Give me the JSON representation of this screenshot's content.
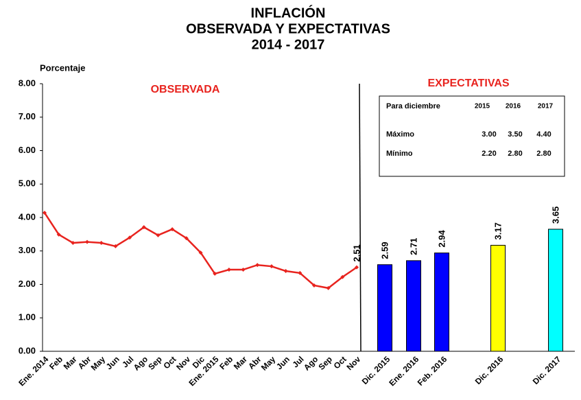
{
  "chart_data": [
    {
      "type": "line",
      "title": [
        "INFLACIÓN",
        "OBSERVADA Y EXPECTATIVAS",
        "2014 - 2017"
      ],
      "y_label": "Porcentaje",
      "annotation": "OBSERVADA",
      "categories": [
        "Ene. 2014",
        "Feb",
        "Mar",
        "Abr",
        "May",
        "Jun",
        "Jul",
        "Ago",
        "Sep",
        "Oct",
        "Nov",
        "Dic",
        "Ene. 2015",
        "Feb",
        "Mar",
        "Abr",
        "May",
        "Jun",
        "Jul",
        "Ago",
        "Sep",
        "Oct",
        "Nov"
      ],
      "values": [
        4.14,
        3.49,
        3.24,
        3.27,
        3.24,
        3.14,
        3.4,
        3.71,
        3.47,
        3.65,
        3.38,
        2.95,
        2.32,
        2.44,
        2.44,
        2.58,
        2.54,
        2.4,
        2.34,
        1.97,
        1.89,
        2.22,
        2.51
      ],
      "value_labels": [
        null,
        null,
        null,
        null,
        null,
        null,
        null,
        null,
        null,
        null,
        null,
        null,
        null,
        null,
        null,
        null,
        null,
        null,
        null,
        null,
        null,
        null,
        "2.51"
      ],
      "color": "#e8231e",
      "ylim": [
        0,
        8
      ],
      "yticks": [
        {
          "value": 0,
          "label": "0.00"
        },
        {
          "value": 1,
          "label": "1.00"
        },
        {
          "value": 2,
          "label": "2.00"
        },
        {
          "value": 3,
          "label": "3.00"
        },
        {
          "value": 4,
          "label": "4.00"
        },
        {
          "value": 5,
          "label": "5.00"
        },
        {
          "value": 6,
          "label": "6.00"
        },
        {
          "value": 7,
          "label": "7.00"
        },
        {
          "value": 8,
          "label": "8.00"
        }
      ]
    },
    {
      "type": "bar",
      "annotation": "EXPECTATIVAS",
      "categories": [
        "Dic. 2015",
        "Ene. 2016",
        "Feb. 2016",
        "Dic. 2016",
        "Dic. 2017"
      ],
      "values": [
        2.59,
        2.71,
        2.94,
        3.17,
        3.65
      ],
      "colors": [
        "#0000ff",
        "#0000ff",
        "#0000ff",
        "#ffff00",
        "#00ffff"
      ],
      "ylim": [
        0,
        8
      ],
      "table": {
        "header": [
          "Para diciembre",
          "2015",
          "2016",
          "2017"
        ],
        "rows": [
          [
            "Máximo",
            "3.00",
            "3.50",
            "4.40"
          ],
          [
            "Mínimo",
            "2.20",
            "2.80",
            "2.80"
          ]
        ]
      }
    }
  ]
}
